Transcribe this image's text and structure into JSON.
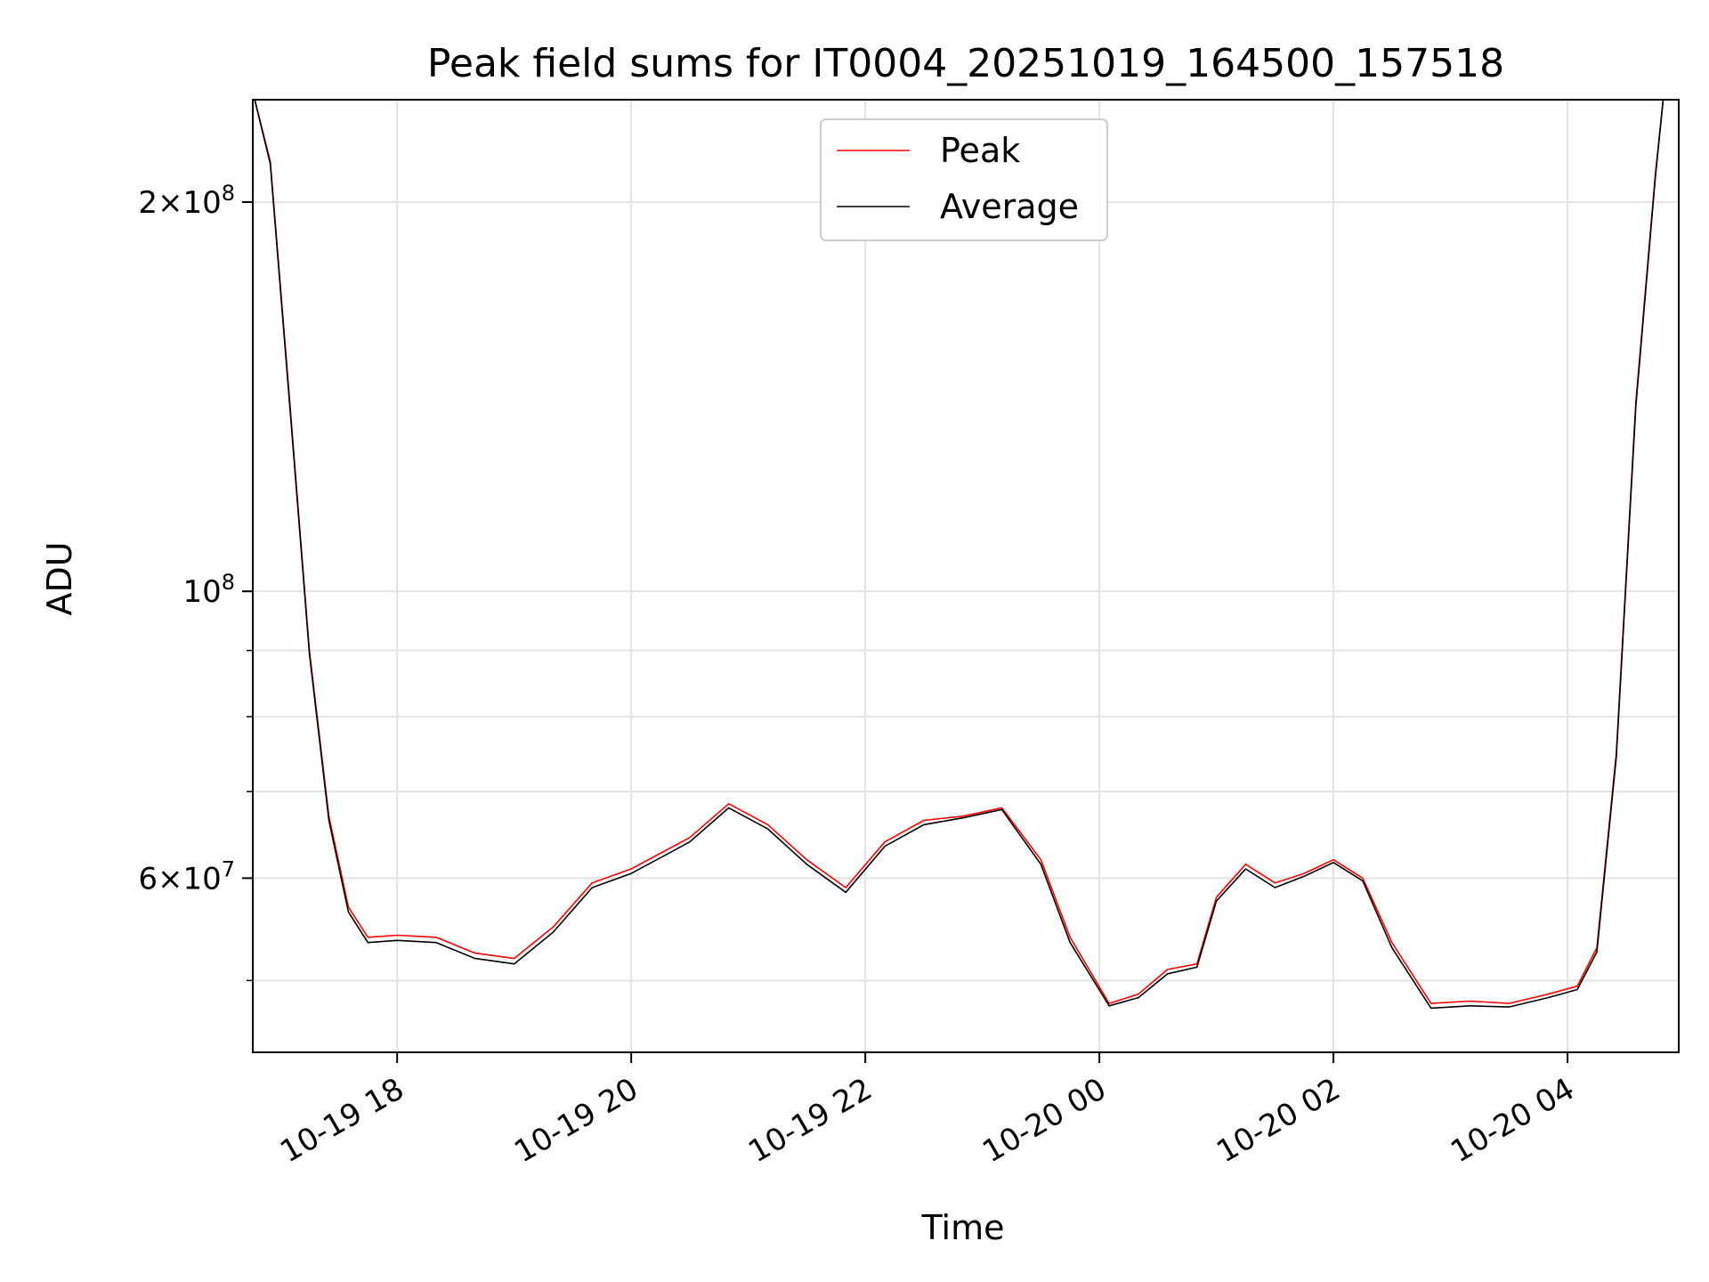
{
  "chart_data": {
    "type": "line",
    "title": "Peak field sums for IT0004_20251019_164500_157518",
    "xlabel": "Time",
    "ylabel": "ADU",
    "yscale": "log",
    "ylim": [
      44000000,
      240000000
    ],
    "xlim": [
      "2025-10-19 16:46",
      "2025-10-20 04:57"
    ],
    "grid": true,
    "legend_position": "upper center",
    "x_tick_labels": [
      "10-19 18",
      "10-19 20",
      "10-19 22",
      "10-20 00",
      "10-20 02",
      "10-20 04"
    ],
    "x_ticks": [
      "2025-10-19 18:00",
      "2025-10-19 20:00",
      "2025-10-19 22:00",
      "2025-10-20 00:00",
      "2025-10-20 02:00",
      "2025-10-20 04:00"
    ],
    "y_major_ticks": [
      {
        "value": 60000000,
        "mantissa": "6",
        "exponent": "7"
      },
      {
        "value": 100000000,
        "mantissa": "",
        "exponent": "8"
      },
      {
        "value": 200000000,
        "mantissa": "2",
        "exponent": "8"
      }
    ],
    "y_minor_ticks": [
      50000000,
      70000000,
      80000000,
      90000000
    ],
    "series": [
      {
        "name": "Peak",
        "color": "#ff0000",
        "x": [
          "2025-10-19 16:47",
          "2025-10-19 16:55",
          "2025-10-19 17:05",
          "2025-10-19 17:15",
          "2025-10-19 17:25",
          "2025-10-19 17:35",
          "2025-10-19 17:45",
          "2025-10-19 18:00",
          "2025-10-19 18:20",
          "2025-10-19 18:40",
          "2025-10-19 19:00",
          "2025-10-19 19:20",
          "2025-10-19 19:40",
          "2025-10-19 20:00",
          "2025-10-19 20:30",
          "2025-10-19 20:50",
          "2025-10-19 21:10",
          "2025-10-19 21:30",
          "2025-10-19 21:50",
          "2025-10-19 22:10",
          "2025-10-19 22:30",
          "2025-10-19 22:50",
          "2025-10-19 23:10",
          "2025-10-19 23:30",
          "2025-10-19 23:45",
          "2025-10-20 00:05",
          "2025-10-20 00:20",
          "2025-10-20 00:35",
          "2025-10-20 00:50",
          "2025-10-20 01:00",
          "2025-10-20 01:15",
          "2025-10-20 01:30",
          "2025-10-20 01:45",
          "2025-10-20 02:00",
          "2025-10-20 02:15",
          "2025-10-20 02:30",
          "2025-10-20 02:50",
          "2025-10-20 03:10",
          "2025-10-20 03:30",
          "2025-10-20 03:50",
          "2025-10-20 04:05",
          "2025-10-20 04:15",
          "2025-10-20 04:25",
          "2025-10-20 04:35",
          "2025-10-20 04:45",
          "2025-10-20 04:49"
        ],
        "y": [
          240000000,
          215000000,
          140000000,
          90000000,
          67000000,
          57000000,
          54000000,
          54200000,
          54000000,
          52500000,
          52000000,
          55000000,
          59500000,
          61000000,
          64500000,
          68500000,
          66000000,
          62000000,
          59000000,
          64000000,
          66500000,
          67000000,
          68000000,
          62000000,
          54000000,
          48000000,
          48800000,
          51000000,
          51500000,
          58000000,
          61500000,
          59500000,
          60500000,
          62000000,
          60000000,
          53500000,
          48000000,
          48200000,
          48000000,
          48800000,
          49500000,
          53000000,
          75000000,
          140000000,
          210000000,
          240000000
        ]
      },
      {
        "name": "Average",
        "color": "#000000",
        "x": [
          "2025-10-19 16:47",
          "2025-10-19 16:55",
          "2025-10-19 17:05",
          "2025-10-19 17:15",
          "2025-10-19 17:25",
          "2025-10-19 17:35",
          "2025-10-19 17:45",
          "2025-10-19 18:00",
          "2025-10-19 18:20",
          "2025-10-19 18:40",
          "2025-10-19 19:00",
          "2025-10-19 19:20",
          "2025-10-19 19:40",
          "2025-10-19 20:00",
          "2025-10-19 20:30",
          "2025-10-19 20:50",
          "2025-10-19 21:10",
          "2025-10-19 21:30",
          "2025-10-19 21:50",
          "2025-10-19 22:10",
          "2025-10-19 22:30",
          "2025-10-19 22:50",
          "2025-10-19 23:10",
          "2025-10-19 23:30",
          "2025-10-19 23:45",
          "2025-10-20 00:05",
          "2025-10-20 00:20",
          "2025-10-20 00:35",
          "2025-10-20 00:50",
          "2025-10-20 01:00",
          "2025-10-20 01:15",
          "2025-10-20 01:30",
          "2025-10-20 01:45",
          "2025-10-20 02:00",
          "2025-10-20 02:15",
          "2025-10-20 02:30",
          "2025-10-20 02:50",
          "2025-10-20 03:10",
          "2025-10-20 03:30",
          "2025-10-20 03:50",
          "2025-10-20 04:05",
          "2025-10-20 04:15",
          "2025-10-20 04:25",
          "2025-10-20 04:35",
          "2025-10-20 04:45",
          "2025-10-20 04:49"
        ],
        "y": [
          240000000,
          214000000,
          139000000,
          89500000,
          66500000,
          56500000,
          53500000,
          53700000,
          53500000,
          52000000,
          51500000,
          54500000,
          59000000,
          60500000,
          64000000,
          68000000,
          65500000,
          61500000,
          58500000,
          63500000,
          66000000,
          66800000,
          67800000,
          61500000,
          53500000,
          47800000,
          48500000,
          50600000,
          51200000,
          57600000,
          61000000,
          59000000,
          60200000,
          61700000,
          59700000,
          53000000,
          47600000,
          47800000,
          47700000,
          48500000,
          49200000,
          52600000,
          74500000,
          139000000,
          209000000,
          240000000
        ]
      }
    ]
  }
}
